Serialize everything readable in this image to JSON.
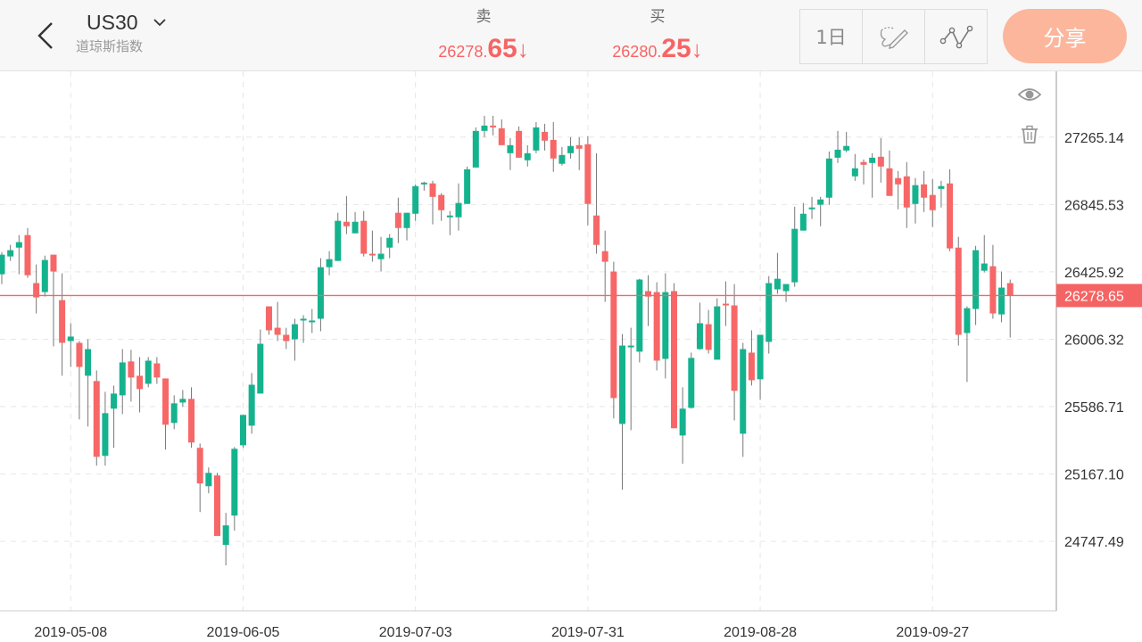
{
  "header": {
    "symbol": "US30",
    "symbol_name": "道琼斯指数",
    "sell": {
      "label": "卖",
      "price_main": "26278.",
      "price_big": "65",
      "arrow": "↓"
    },
    "buy": {
      "label": "买",
      "price_main": "26280.",
      "price_big": "25",
      "arrow": "↓"
    },
    "period_label": "1日",
    "share_label": "分享"
  },
  "icons": [
    "back-chevron-icon",
    "chevron-down-icon",
    "draw-pen-icon",
    "indicator-line-icon",
    "eye-icon",
    "trash-icon"
  ],
  "colors": {
    "up": "#14b38e",
    "down": "#f76767",
    "price_line": "#f56464",
    "share_button": "#fcb69c"
  },
  "chart_data": {
    "type": "candlestick",
    "ylim": [
      24315,
      27675
    ],
    "grid": true,
    "y_ticks": [
      "27265.14",
      "26845.53",
      "26425.92",
      "26006.32",
      "25586.71",
      "25167.10",
      "24747.49"
    ],
    "x_ticks": [
      {
        "label": "2019-05-08",
        "candle": 8
      },
      {
        "label": "2019-06-05",
        "candle": 28
      },
      {
        "label": "2019-07-03",
        "candle": 48
      },
      {
        "label": "2019-07-31",
        "candle": 68
      },
      {
        "label": "2019-08-28",
        "candle": 88
      },
      {
        "label": "2019-09-27",
        "candle": 108
      }
    ],
    "current_price": "26278.65",
    "ohlc_fields": [
      "open",
      "high",
      "low",
      "close"
    ],
    "candles": [
      [
        26411,
        26550,
        26350,
        26533
      ],
      [
        26522,
        26594,
        26494,
        26561
      ],
      [
        26577,
        26655,
        26411,
        26611
      ],
      [
        26655,
        26699,
        26389,
        26405
      ],
      [
        26356,
        26472,
        26167,
        26267
      ],
      [
        26300,
        26527,
        26272,
        26500
      ],
      [
        26533,
        26533,
        25962,
        26428
      ],
      [
        26250,
        26417,
        25779,
        25984
      ],
      [
        25995,
        26106,
        25834,
        26023
      ],
      [
        25984,
        25995,
        25507,
        25834
      ],
      [
        25779,
        26006,
        25463,
        25945
      ],
      [
        25746,
        25812,
        25219,
        25274
      ],
      [
        25280,
        25679,
        25219,
        25546
      ],
      [
        25574,
        25718,
        25330,
        25668
      ],
      [
        25657,
        25945,
        25540,
        25862
      ],
      [
        25868,
        25940,
        25618,
        25768
      ],
      [
        25779,
        25895,
        25551,
        25696
      ],
      [
        25729,
        25895,
        25707,
        25873
      ],
      [
        25856,
        25895,
        25729,
        25768
      ],
      [
        25762,
        25762,
        25319,
        25474
      ],
      [
        25485,
        25657,
        25446,
        25607
      ],
      [
        25612,
        25690,
        25585,
        25635
      ],
      [
        25635,
        25707,
        25330,
        25363
      ],
      [
        25330,
        25357,
        24930,
        25108
      ],
      [
        25091,
        25208,
        25047,
        25174
      ],
      [
        25158,
        25174,
        24781,
        24781
      ],
      [
        24725,
        24925,
        24598,
        24847
      ],
      [
        24908,
        25335,
        24814,
        25324
      ],
      [
        25346,
        25535,
        25330,
        25535
      ],
      [
        25468,
        25796,
        25418,
        25723
      ],
      [
        25668,
        26067,
        25668,
        25978
      ],
      [
        26211,
        26211,
        26034,
        26062
      ],
      [
        26078,
        26239,
        25995,
        26034
      ],
      [
        26034,
        26078,
        25945,
        25995
      ],
      [
        26006,
        26134,
        25873,
        26100
      ],
      [
        26123,
        26156,
        25984,
        26134
      ],
      [
        26112,
        26195,
        26045,
        26123
      ],
      [
        26134,
        26511,
        26056,
        26455
      ],
      [
        26455,
        26555,
        26405,
        26505
      ],
      [
        26494,
        26794,
        26494,
        26744
      ],
      [
        26738,
        26899,
        26661,
        26710
      ],
      [
        26666,
        26799,
        26666,
        26738
      ],
      [
        26744,
        26805,
        26522,
        26539
      ],
      [
        26539,
        26683,
        26489,
        26533
      ],
      [
        26505,
        26644,
        26428,
        26539
      ],
      [
        26577,
        26661,
        26511,
        26638
      ],
      [
        26794,
        26888,
        26605,
        26699
      ],
      [
        26699,
        26794,
        26622,
        26794
      ],
      [
        26788,
        26971,
        26744,
        26960
      ],
      [
        26977,
        26988,
        26932,
        26982
      ],
      [
        26977,
        26993,
        26722,
        26893
      ],
      [
        26905,
        26916,
        26744,
        26810
      ],
      [
        26771,
        26805,
        26655,
        26777
      ],
      [
        26766,
        26977,
        26683,
        26855
      ],
      [
        26849,
        27082,
        26849,
        27065
      ],
      [
        27076,
        27326,
        27076,
        27304
      ],
      [
        27304,
        27398,
        27265,
        27337
      ],
      [
        27337,
        27398,
        27276,
        27332
      ],
      [
        27320,
        27376,
        27215,
        27215
      ],
      [
        27165,
        27259,
        27060,
        27215
      ],
      [
        27304,
        27332,
        27137,
        27137
      ],
      [
        27121,
        27215,
        27082,
        27165
      ],
      [
        27182,
        27359,
        27165,
        27326
      ],
      [
        27298,
        27348,
        27182,
        27243
      ],
      [
        27248,
        27359,
        27049,
        27132
      ],
      [
        27099,
        27204,
        27088,
        27154
      ],
      [
        27165,
        27265,
        27132,
        27210
      ],
      [
        27215,
        27265,
        27060,
        27193
      ],
      [
        27221,
        27271,
        26716,
        26849
      ],
      [
        26777,
        27165,
        26539,
        26594
      ],
      [
        26555,
        26683,
        26239,
        26489
      ],
      [
        26428,
        26489,
        25513,
        25640
      ],
      [
        25479,
        26039,
        25069,
        25967
      ],
      [
        25962,
        26078,
        25440,
        25967
      ],
      [
        25929,
        26383,
        25862,
        26378
      ],
      [
        26306,
        26405,
        26089,
        26272
      ],
      [
        26300,
        26361,
        25812,
        25873
      ],
      [
        25884,
        26417,
        25762,
        26300
      ],
      [
        26306,
        26356,
        25452,
        25452
      ],
      [
        25407,
        25707,
        25230,
        25574
      ],
      [
        25579,
        25923,
        25574,
        25890
      ],
      [
        25945,
        26234,
        25940,
        26106
      ],
      [
        26100,
        26189,
        25917,
        25940
      ],
      [
        25879,
        26261,
        25879,
        26211
      ],
      [
        26228,
        26367,
        26089,
        26222
      ],
      [
        26217,
        26350,
        25501,
        25685
      ],
      [
        25418,
        25984,
        25274,
        25945
      ],
      [
        25923,
        26062,
        25718,
        25751
      ],
      [
        25757,
        26034,
        25629,
        26034
      ],
      [
        25990,
        26400,
        25917,
        26356
      ],
      [
        26317,
        26544,
        26289,
        26383
      ],
      [
        26306,
        26350,
        26239,
        26350
      ],
      [
        26361,
        26832,
        26333,
        26694
      ],
      [
        26683,
        26855,
        26683,
        26788
      ],
      [
        26821,
        26893,
        26755,
        26827
      ],
      [
        26844,
        26893,
        26710,
        26877
      ],
      [
        26888,
        27176,
        26844,
        27132
      ],
      [
        27137,
        27304,
        27104,
        27187
      ],
      [
        27182,
        27298,
        27171,
        27210
      ],
      [
        27021,
        27160,
        26993,
        27071
      ],
      [
        27110,
        27126,
        26971,
        27093
      ],
      [
        27104,
        27165,
        26888,
        27137
      ],
      [
        27143,
        27259,
        26982,
        27082
      ],
      [
        27071,
        27182,
        26899,
        26899
      ],
      [
        27010,
        27054,
        26816,
        26971
      ],
      [
        27021,
        27110,
        26699,
        26827
      ],
      [
        26849,
        27010,
        26727,
        26966
      ],
      [
        26971,
        27054,
        26799,
        26888
      ],
      [
        26905,
        27004,
        26705,
        26810
      ],
      [
        26943,
        26993,
        26827,
        26960
      ],
      [
        26977,
        27065,
        26555,
        26572
      ],
      [
        26577,
        26644,
        25967,
        26034
      ],
      [
        26045,
        26211,
        25740,
        26200
      ],
      [
        26195,
        26588,
        26095,
        26561
      ],
      [
        26433,
        26655,
        26422,
        26478
      ],
      [
        26461,
        26594,
        26134,
        26167
      ],
      [
        26161,
        26428,
        26112,
        26328
      ],
      [
        26356,
        26378,
        26017,
        26279
      ]
    ]
  }
}
